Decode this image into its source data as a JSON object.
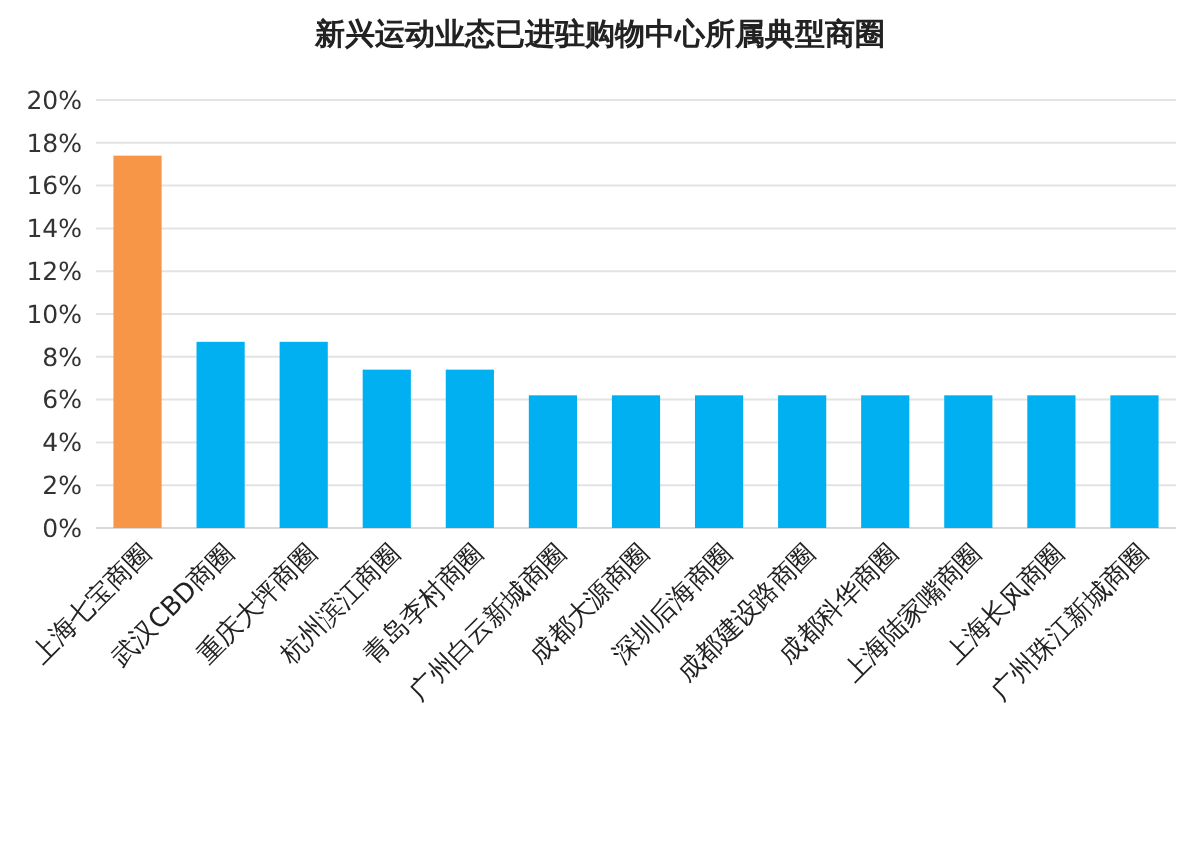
{
  "chart_data": {
    "type": "bar",
    "title": "新兴运动业态已进驻购物中心所属典型商圈",
    "categories": [
      "上海七宝商圈",
      "武汉CBD商圈",
      "重庆大坪商圈",
      "杭州滨江商圈",
      "青岛李村商圈",
      "广州白云新城商圈",
      "成都大源商圈",
      "深圳后海商圈",
      "成都建设路商圈",
      "成都科华商圈",
      "上海陆家嘴商圈",
      "上海长风商圈",
      "广州珠江新城商圈"
    ],
    "values": [
      17.4,
      8.7,
      8.7,
      7.4,
      7.4,
      6.2,
      6.2,
      6.2,
      6.2,
      6.2,
      6.2,
      6.2,
      6.2
    ],
    "colors": [
      "#f79646",
      "#00b0f0",
      "#00b0f0",
      "#00b0f0",
      "#00b0f0",
      "#00b0f0",
      "#00b0f0",
      "#00b0f0",
      "#00b0f0",
      "#00b0f0",
      "#00b0f0",
      "#00b0f0",
      "#00b0f0"
    ],
    "ylim": [
      0,
      20
    ],
    "yticks": [
      {
        "value": 0,
        "label": "0%"
      },
      {
        "value": 2,
        "label": "2%"
      },
      {
        "value": 4,
        "label": "4%"
      },
      {
        "value": 6,
        "label": "6%"
      },
      {
        "value": 8,
        "label": "8%"
      },
      {
        "value": 10,
        "label": "10%"
      },
      {
        "value": 12,
        "label": "12%"
      },
      {
        "value": 14,
        "label": "14%"
      },
      {
        "value": 16,
        "label": "16%"
      },
      {
        "value": 18,
        "label": "18%"
      },
      {
        "value": 20,
        "label": "20%"
      }
    ],
    "grid": "y"
  }
}
